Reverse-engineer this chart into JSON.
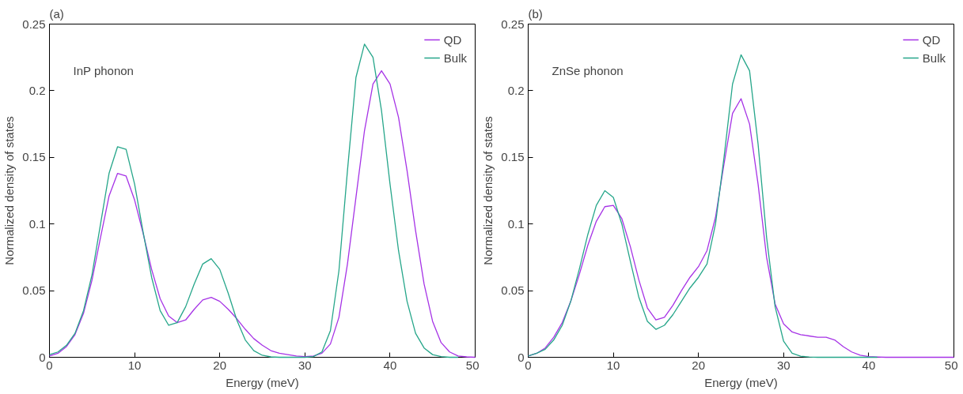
{
  "chart_data": [
    {
      "type": "line",
      "title": "(a)",
      "annotations": [
        "InP phonon"
      ],
      "xlabel": "Energy (meV)",
      "ylabel": "Normalized density of states",
      "xlim": [
        0,
        50
      ],
      "ylim": [
        0,
        0.25
      ],
      "xticks": [
        0,
        10,
        20,
        30,
        40,
        50
      ],
      "yticks": [
        0,
        0.05,
        0.1,
        0.15,
        0.2,
        0.25
      ],
      "grid": false,
      "legend": "top right",
      "line_style": "solid",
      "x": [
        0,
        1,
        2,
        3,
        4,
        5,
        6,
        7,
        8,
        9,
        10,
        11,
        12,
        13,
        14,
        15,
        16,
        17,
        18,
        19,
        20,
        21,
        22,
        23,
        24,
        25,
        26,
        27,
        28,
        29,
        30,
        31,
        32,
        33,
        34,
        35,
        36,
        37,
        38,
        39,
        40,
        41,
        42,
        43,
        44,
        45,
        46,
        47,
        48,
        49,
        50
      ],
      "series": [
        {
          "name": "QD",
          "color": "#a633e6",
          "values": [
            0.001,
            0.003,
            0.008,
            0.017,
            0.033,
            0.058,
            0.09,
            0.121,
            0.138,
            0.136,
            0.118,
            0.093,
            0.066,
            0.044,
            0.031,
            0.026,
            0.028,
            0.036,
            0.043,
            0.045,
            0.042,
            0.036,
            0.029,
            0.021,
            0.014,
            0.009,
            0.005,
            0.003,
            0.002,
            0.001,
            0.0005,
            0.001,
            0.003,
            0.01,
            0.03,
            0.07,
            0.12,
            0.17,
            0.205,
            0.215,
            0.205,
            0.18,
            0.14,
            0.095,
            0.055,
            0.027,
            0.011,
            0.004,
            0.001,
            0.0003,
            0
          ]
        },
        {
          "name": "Bulk",
          "color": "#26a68a",
          "values": [
            0.002,
            0.004,
            0.009,
            0.018,
            0.035,
            0.062,
            0.1,
            0.138,
            0.158,
            0.156,
            0.13,
            0.094,
            0.06,
            0.035,
            0.024,
            0.026,
            0.038,
            0.055,
            0.07,
            0.074,
            0.066,
            0.048,
            0.028,
            0.013,
            0.005,
            0.0015,
            0.0003,
            0,
            0,
            0,
            0,
            0.0005,
            0.004,
            0.02,
            0.065,
            0.14,
            0.21,
            0.235,
            0.225,
            0.185,
            0.13,
            0.08,
            0.042,
            0.018,
            0.007,
            0.002,
            0.0005,
            0,
            0,
            null,
            null
          ]
        }
      ]
    },
    {
      "type": "line",
      "title": "(b)",
      "annotations": [
        "ZnSe phonon"
      ],
      "xlabel": "Energy (meV)",
      "ylabel": "Normalized density of states",
      "xlim": [
        0,
        50
      ],
      "ylim": [
        0,
        0.25
      ],
      "xticks": [
        0,
        10,
        20,
        30,
        40,
        50
      ],
      "yticks": [
        0,
        0.05,
        0.1,
        0.15,
        0.2,
        0.25
      ],
      "grid": false,
      "legend": "top right",
      "line_style": "solid",
      "x": [
        0,
        1,
        2,
        3,
        4,
        5,
        6,
        7,
        8,
        9,
        10,
        11,
        12,
        13,
        14,
        15,
        16,
        17,
        18,
        19,
        20,
        21,
        22,
        23,
        24,
        25,
        26,
        27,
        28,
        29,
        30,
        31,
        32,
        33,
        34,
        35,
        36,
        37,
        38,
        39,
        40,
        41,
        42,
        43,
        44,
        45,
        46,
        47,
        48,
        49,
        50
      ],
      "series": [
        {
          "name": "QD",
          "color": "#a633e6",
          "values": [
            0.001,
            0.003,
            0.007,
            0.015,
            0.026,
            0.042,
            0.062,
            0.084,
            0.102,
            0.113,
            0.114,
            0.104,
            0.083,
            0.058,
            0.037,
            0.028,
            0.03,
            0.039,
            0.05,
            0.06,
            0.068,
            0.08,
            0.105,
            0.145,
            0.183,
            0.194,
            0.175,
            0.13,
            0.075,
            0.04,
            0.025,
            0.019,
            0.017,
            0.016,
            0.015,
            0.015,
            0.013,
            0.008,
            0.004,
            0.0015,
            0.0005,
            0.0002,
            0,
            0,
            0,
            0,
            0,
            0,
            0,
            0,
            0
          ]
        },
        {
          "name": "Bulk",
          "color": "#26a68a",
          "values": [
            0.001,
            0.003,
            0.006,
            0.013,
            0.024,
            0.042,
            0.066,
            0.092,
            0.114,
            0.125,
            0.12,
            0.1,
            0.072,
            0.045,
            0.027,
            0.021,
            0.024,
            0.032,
            0.042,
            0.052,
            0.06,
            0.07,
            0.1,
            0.15,
            0.205,
            0.227,
            0.215,
            0.16,
            0.09,
            0.038,
            0.012,
            0.003,
            0.0008,
            0.0002,
            0,
            0,
            0,
            0,
            0,
            0,
            0,
            0,
            null,
            null,
            null,
            null,
            null,
            null,
            null,
            null,
            null
          ]
        }
      ]
    }
  ]
}
